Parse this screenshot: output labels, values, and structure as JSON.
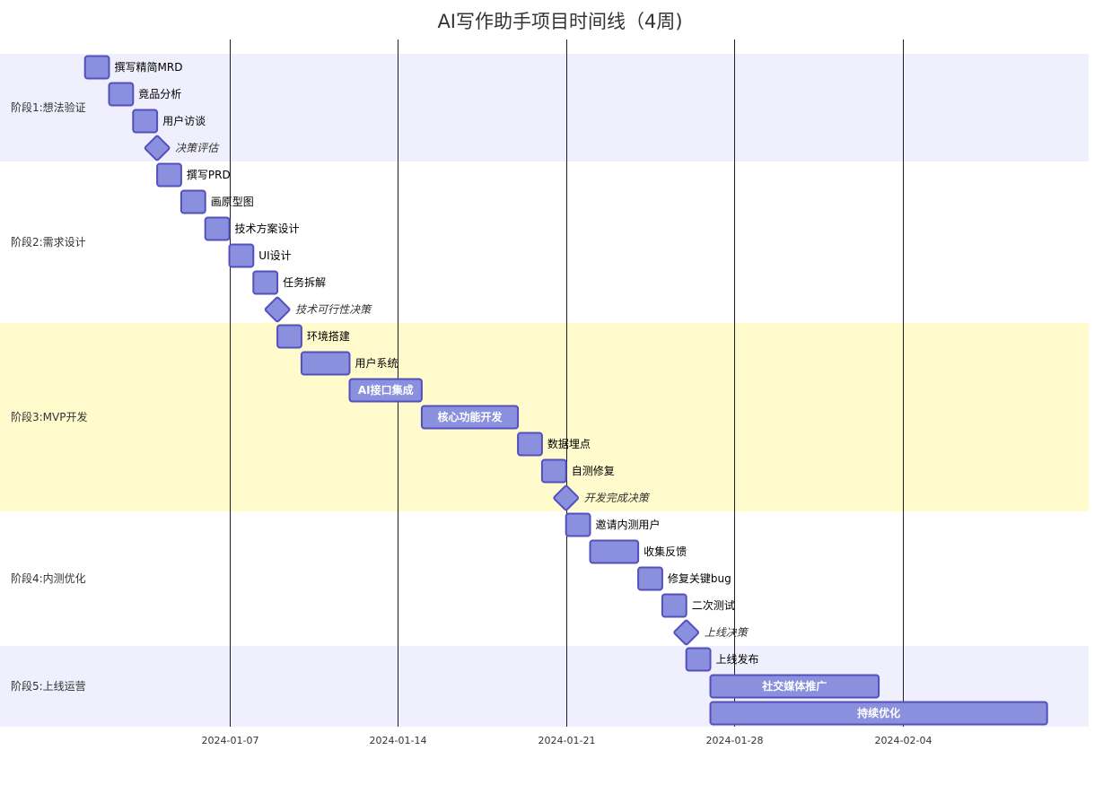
{
  "chart_data": {
    "type": "gantt",
    "title": "AI写作助手项目时间线（4周)",
    "axis": {
      "start": "2023-12-29",
      "end": "2024-02-09",
      "ticks": [
        "2024-01-07",
        "2024-01-14",
        "2024-01-21",
        "2024-01-28",
        "2024-02-04"
      ]
    },
    "sections": [
      {
        "name": "阶段1:想法验证",
        "tasks": [
          {
            "label": "撰写精简MRD",
            "start": "2024-01-01",
            "days": 1
          },
          {
            "label": "竟品分析",
            "start": "2024-01-02",
            "days": 1
          },
          {
            "label": "用户访谈",
            "start": "2024-01-03",
            "days": 1
          },
          {
            "label": "决策评估",
            "start": "2024-01-04",
            "milestone": true
          }
        ]
      },
      {
        "name": "阶段2:需求设计",
        "tasks": [
          {
            "label": "撰写PRD",
            "start": "2024-01-04",
            "days": 1
          },
          {
            "label": "画原型图",
            "start": "2024-01-05",
            "days": 1
          },
          {
            "label": "技术方案设计",
            "start": "2024-01-06",
            "days": 1
          },
          {
            "label": "UI设计",
            "start": "2024-01-07",
            "days": 1
          },
          {
            "label": "任务拆解",
            "start": "2024-01-08",
            "days": 1
          },
          {
            "label": "技术可行性决策",
            "start": "2024-01-09",
            "milestone": true
          }
        ]
      },
      {
        "name": "阶段3:MVP开发",
        "tasks": [
          {
            "label": "环境搭建",
            "start": "2024-01-09",
            "days": 1
          },
          {
            "label": "用户系统",
            "start": "2024-01-10",
            "days": 2
          },
          {
            "label": "AI接口集成",
            "start": "2024-01-12",
            "days": 3
          },
          {
            "label": "核心功能开发",
            "start": "2024-01-15",
            "days": 4
          },
          {
            "label": "数据埋点",
            "start": "2024-01-19",
            "days": 1
          },
          {
            "label": "自测修复",
            "start": "2024-01-20",
            "days": 1
          },
          {
            "label": "开发完成决策",
            "start": "2024-01-21",
            "milestone": true
          }
        ]
      },
      {
        "name": "阶段4:内测优化",
        "tasks": [
          {
            "label": "邀请内测用户",
            "start": "2024-01-21",
            "days": 1
          },
          {
            "label": "收集反馈",
            "start": "2024-01-22",
            "days": 2
          },
          {
            "label": "修复关键bug",
            "start": "2024-01-24",
            "days": 1
          },
          {
            "label": "二次测试",
            "start": "2024-01-25",
            "days": 1
          },
          {
            "label": "上线决策",
            "start": "2024-01-26",
            "milestone": true
          }
        ]
      },
      {
        "name": "阶段5:上线运营",
        "tasks": [
          {
            "label": "上线发布",
            "start": "2024-01-26",
            "days": 1
          },
          {
            "label": "社交媒体推广",
            "start": "2024-01-27",
            "days": 7
          },
          {
            "label": "持续优化",
            "start": "2024-01-27",
            "days": 14
          }
        ]
      }
    ],
    "colors": {
      "bar_fill": "#8a90dd",
      "bar_stroke": "#534fbc",
      "section_odd": "#efeffd",
      "section_even": "#ffffff",
      "section_highlight": "#fffbcc",
      "section_colors": [
        "#efeffd",
        "#ffffff",
        "#fffbcc",
        "#ffffff",
        "#efeffd"
      ],
      "grid": "#1f1f1f"
    }
  }
}
